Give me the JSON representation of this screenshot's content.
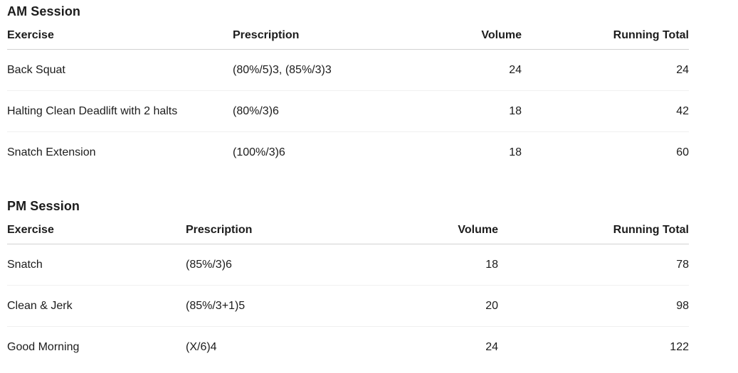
{
  "page": {
    "background_color": "#ffffff",
    "text_color": "#1c1c1c",
    "header_border_color": "#d2d2d2",
    "row_border_color": "#f0f0f0"
  },
  "sessions": [
    {
      "title": "AM Session",
      "columns": [
        "Exercise",
        "Prescription",
        "Volume",
        "Running Total"
      ],
      "rows": [
        {
          "exercise": "Back Squat",
          "prescription": "(80%/5)3, (85%/3)3",
          "volume": "24",
          "running_total": "24"
        },
        {
          "exercise": "Halting Clean Deadlift with 2 halts",
          "prescription": "(80%/3)6",
          "volume": "18",
          "running_total": "42"
        },
        {
          "exercise": "Snatch Extension",
          "prescription": "(100%/3)6",
          "volume": "18",
          "running_total": "60"
        }
      ]
    },
    {
      "title": "PM Session",
      "columns": [
        "Exercise",
        "Prescription",
        "Volume",
        "Running Total"
      ],
      "rows": [
        {
          "exercise": "Snatch",
          "prescription": "(85%/3)6",
          "volume": "18",
          "running_total": "78"
        },
        {
          "exercise": "Clean & Jerk",
          "prescription": "(85%/3+1)5",
          "volume": "20",
          "running_total": "98"
        },
        {
          "exercise": "Good Morning",
          "prescription": "(X/6)4",
          "volume": "24",
          "running_total": "122"
        }
      ]
    }
  ]
}
